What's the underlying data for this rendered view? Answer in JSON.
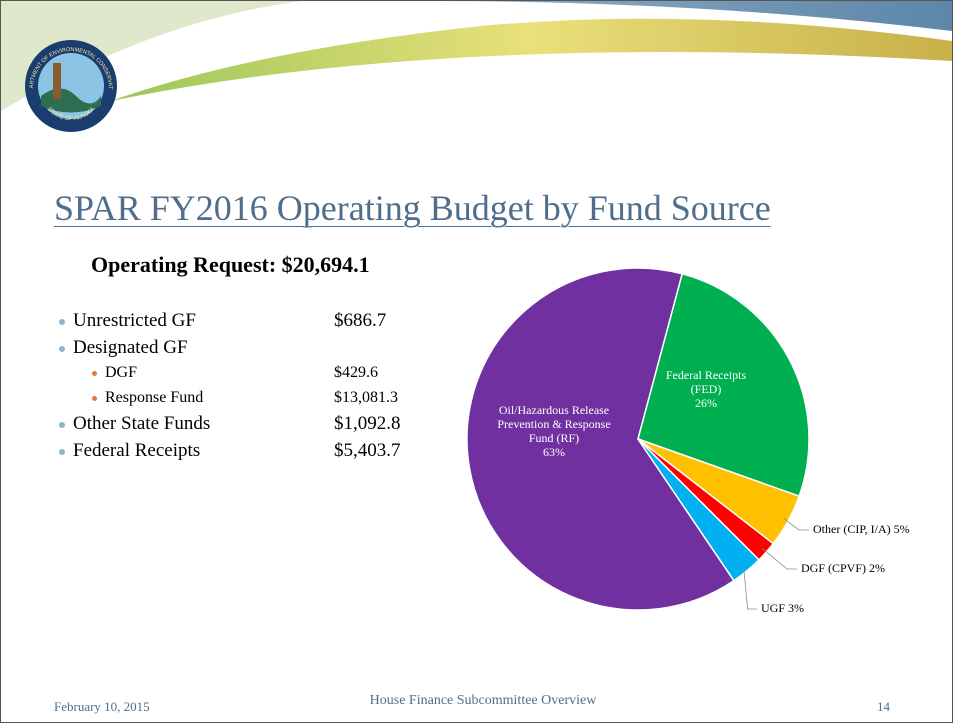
{
  "logo": {
    "top": "DEPARTMENT OF ENVIRONMENTAL CONSERVATION",
    "bottom": "STATE OF ALASKA"
  },
  "header": {
    "title": "SPAR FY2016 Operating Budget by Fund Source",
    "subtitle": "Operating Request: $20,694.1"
  },
  "bullets": [
    {
      "label": "Unrestricted GF",
      "amount": "$686.7"
    },
    {
      "label": "Designated GF",
      "children": [
        {
          "label": "DGF",
          "amount": "$429.6"
        },
        {
          "label": "Response Fund",
          "amount": "$13,081.3"
        }
      ]
    },
    {
      "label": "Other State Funds",
      "amount": "$1,092.8"
    },
    {
      "label": "Federal Receipts",
      "amount": "$5,403.7"
    }
  ],
  "chart_data": {
    "type": "pie",
    "categories": [
      "Oil/Hazardous Release Prevention & Response Fund (RF)",
      "Federal Receipts (FED)",
      "Other (CIP, I/A)",
      "DGF (CPVF)",
      "UGF"
    ],
    "values": [
      63,
      26,
      5,
      2,
      3
    ],
    "value_labels": [
      "63%",
      "26%",
      "5%",
      "2%",
      "3%"
    ],
    "colors": [
      "#7030a0",
      "#00b050",
      "#ffc000",
      "#ff0000",
      "#00b0f0"
    ]
  },
  "footer": {
    "date": "February 10, 2015",
    "center": "House Finance Subcommittee Overview",
    "page": "14"
  }
}
